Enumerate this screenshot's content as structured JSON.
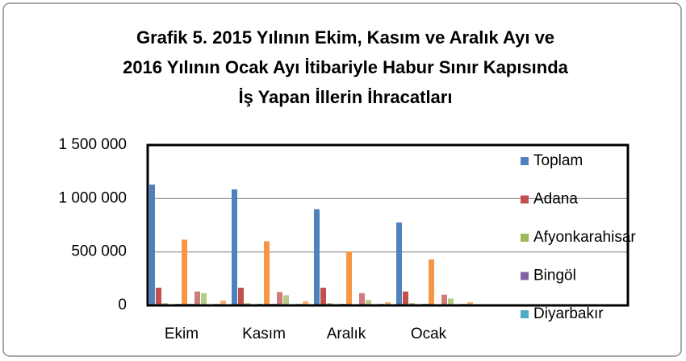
{
  "chart_data": {
    "type": "bar",
    "title": [
      "Grafik 5. 2015 Yılının Ekim, Kasım ve Aralık Ayı ve",
      "2016 Yılının Ocak Ayı İtibariyle Habur Sınır Kapısında",
      "İş Yapan İllerin İhracatları"
    ],
    "categories": [
      "Ekim",
      "Kasım",
      "Aralık",
      "Ocak"
    ],
    "series": [
      {
        "name": "Toplam",
        "color": "#4f81bd",
        "values": [
          1130000,
          1085000,
          900000,
          775000
        ]
      },
      {
        "name": "Adana",
        "color": "#c0504d",
        "values": [
          165000,
          165000,
          165000,
          130000
        ]
      },
      {
        "name": "Afyonkarahisar",
        "color": "#9bbb59",
        "values": [
          20000,
          20000,
          20000,
          20000
        ]
      },
      {
        "name": "Bingöl",
        "color": "#8064a2",
        "values": [
          10000,
          10000,
          10000,
          10000
        ]
      },
      {
        "name": "Diyarbakır",
        "color": "#4bacc6",
        "values": [
          15000,
          15000,
          15000,
          15000
        ]
      },
      {
        "color": "#f79646",
        "values": [
          615000,
          600000,
          505000,
          430000
        ]
      },
      {
        "color": "#7ba0cd",
        "values": [
          15000,
          15000,
          10000,
          10000
        ]
      },
      {
        "color": "#cf7b79",
        "values": [
          130000,
          125000,
          115000,
          100000
        ]
      },
      {
        "color": "#b4cc84",
        "values": [
          115000,
          95000,
          50000,
          65000
        ]
      },
      {
        "color": "#9f8bbb",
        "values": [
          10000,
          10000,
          10000,
          10000
        ]
      },
      {
        "color": "#79bfd4",
        "values": [
          15000,
          15000,
          15000,
          15000
        ]
      },
      {
        "color": "#f9b074",
        "values": [
          45000,
          40000,
          30000,
          30000
        ]
      }
    ],
    "ylim": [
      0,
      1500000
    ],
    "yticks": [
      0,
      {
        "value": 500000,
        "label": "500 000"
      },
      {
        "value": 1000000,
        "label": "1 000 000"
      },
      {
        "value": 1500000,
        "label": "1 500 000"
      }
    ],
    "grid": true,
    "legend": "right"
  }
}
